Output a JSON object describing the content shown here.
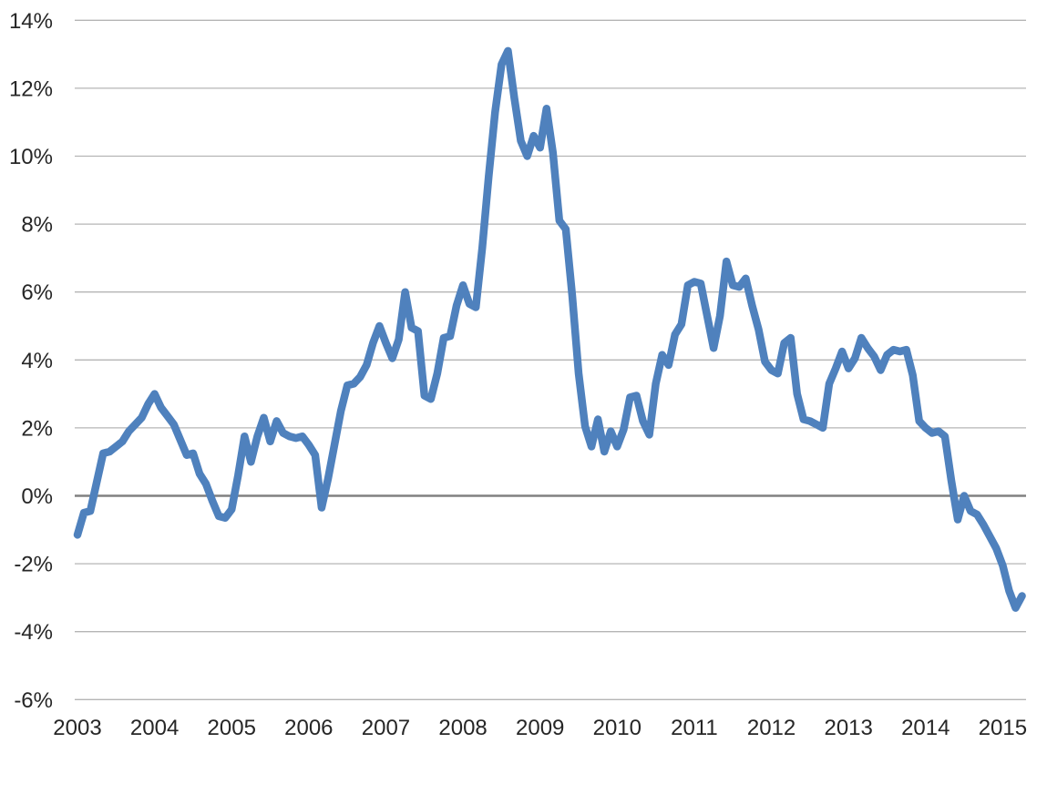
{
  "chart": {
    "title": "",
    "style": {
      "background_color": "#ffffff",
      "line_color": "#4f81bd",
      "gridline_color": "#b5b5b5",
      "zero_axis_color": "#808080",
      "tick_label_color": "#262626"
    }
  },
  "chart_data": {
    "type": "line",
    "title": "",
    "xlabel": "",
    "ylabel": "",
    "legend": "none",
    "grid": true,
    "frequency": "monthly",
    "x_start": "2003-01",
    "x_end": "2015-04",
    "x_tick_labels": [
      "2003",
      "2004",
      "2005",
      "2006",
      "2007",
      "2008",
      "2009",
      "2010",
      "2011",
      "2012",
      "2013",
      "2014",
      "2015"
    ],
    "y_tick_labels": [
      "14%",
      "12%",
      "10%",
      "8%",
      "6%",
      "4%",
      "2%",
      "0%",
      "-2%",
      "-4%",
      "-6%"
    ],
    "y_tick_values": [
      14,
      12,
      10,
      8,
      6,
      4,
      2,
      0,
      -2,
      -4,
      -6
    ],
    "ylim": [
      -6,
      14
    ],
    "y_grid_step": 2,
    "series": [
      {
        "name": "percent-change-yoy",
        "color": "#4f81bd",
        "values": [
          -1.15,
          -0.5,
          -0.45,
          0.4,
          1.25,
          1.3,
          1.45,
          1.6,
          1.9,
          2.1,
          2.3,
          2.7,
          3.0,
          2.6,
          2.35,
          2.1,
          1.65,
          1.2,
          1.25,
          0.65,
          0.35,
          -0.15,
          -0.6,
          -0.65,
          -0.4,
          0.6,
          1.75,
          1.0,
          1.75,
          2.3,
          1.6,
          2.2,
          1.85,
          1.75,
          1.7,
          1.75,
          1.5,
          1.2,
          -0.35,
          0.5,
          1.5,
          2.5,
          3.25,
          3.3,
          3.5,
          3.85,
          4.5,
          5.0,
          4.5,
          4.05,
          4.6,
          6.0,
          4.95,
          4.85,
          2.95,
          2.85,
          3.6,
          4.65,
          4.7,
          5.6,
          6.2,
          5.65,
          5.55,
          7.3,
          9.4,
          11.3,
          12.7,
          13.1,
          11.7,
          10.45,
          10.0,
          10.6,
          10.25,
          11.4,
          10.1,
          8.1,
          7.85,
          5.9,
          3.6,
          2.05,
          1.45,
          2.25,
          1.3,
          1.9,
          1.45,
          1.95,
          2.9,
          2.95,
          2.2,
          1.8,
          3.3,
          4.15,
          3.85,
          4.75,
          5.05,
          6.2,
          6.3,
          6.25,
          5.3,
          4.35,
          5.3,
          6.9,
          6.2,
          6.15,
          6.4,
          5.6,
          4.9,
          3.95,
          3.7,
          3.6,
          4.5,
          4.65,
          3.0,
          2.25,
          2.2,
          2.1,
          2.0,
          3.3,
          3.75,
          4.25,
          3.75,
          4.05,
          4.65,
          4.35,
          4.1,
          3.7,
          4.15,
          4.3,
          4.25,
          4.3,
          3.55,
          2.2,
          2.0,
          1.85,
          1.9,
          1.75,
          0.45,
          -0.7,
          0.0,
          -0.45,
          -0.55,
          -0.85,
          -1.2,
          -1.55,
          -2.05,
          -2.8,
          -3.3,
          -2.95
        ]
      }
    ]
  }
}
